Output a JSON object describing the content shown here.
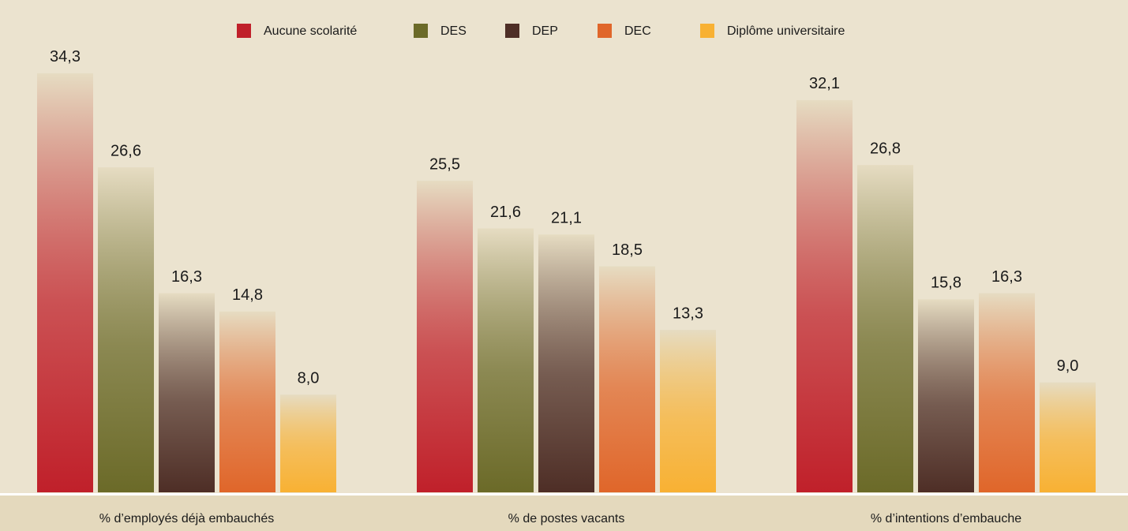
{
  "chart_data": {
    "type": "bar",
    "categories": [
      "% d’employés déjà embauchés",
      "% de postes vacants",
      "% d’intentions d’embauche"
    ],
    "series": [
      {
        "name": "Aucune scolarité",
        "color": "#c0202a",
        "values": [
          34.3,
          25.5,
          32.1
        ],
        "value_labels": [
          "34,3",
          "25,5",
          "32,1"
        ]
      },
      {
        "name": "DES",
        "color": "#6b6a28",
        "values": [
          26.6,
          21.6,
          26.8
        ],
        "value_labels": [
          "26,6",
          "21,6",
          "26,8"
        ]
      },
      {
        "name": "DEP",
        "color": "#4e2e26",
        "values": [
          16.3,
          21.1,
          15.8
        ],
        "value_labels": [
          "16,3",
          "21,1",
          "15,8"
        ]
      },
      {
        "name": "DEC",
        "color": "#e0662a",
        "values": [
          14.8,
          18.5,
          16.3
        ],
        "value_labels": [
          "14,8",
          "18,5",
          "16,3"
        ]
      },
      {
        "name": "Diplôme universitaire",
        "color": "#f8b133",
        "values": [
          8.0,
          13.3,
          9.0
        ],
        "value_labels": [
          "8,0",
          "13,3",
          "9,0"
        ]
      }
    ],
    "ylim": [
      0,
      35
    ],
    "legend": "top"
  }
}
